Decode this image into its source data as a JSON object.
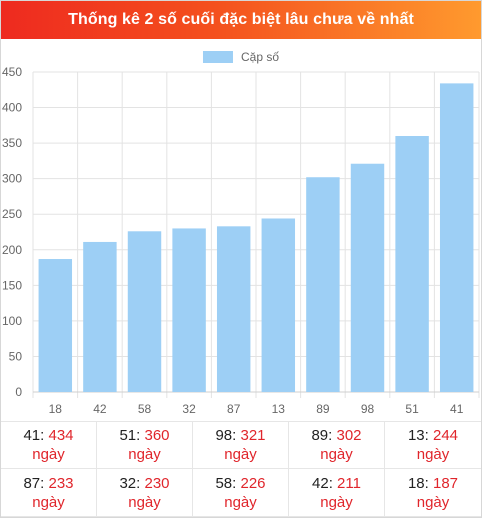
{
  "header": {
    "title": "Thống kê 2 số cuối đặc biệt lâu chưa về nhất"
  },
  "chart_data": {
    "type": "bar",
    "title": "",
    "xlabel": "",
    "ylabel": "",
    "legend": {
      "label": "Cặp số",
      "position": "top",
      "color": "#9dcff5"
    },
    "categories": [
      "18",
      "42",
      "58",
      "32",
      "87",
      "13",
      "89",
      "98",
      "51",
      "41"
    ],
    "series": [
      {
        "name": "Cặp số",
        "values": [
          187,
          211,
          226,
          230,
          233,
          244,
          302,
          321,
          360,
          434
        ]
      }
    ],
    "ylim": [
      0,
      450
    ],
    "yticks": [
      0,
      50,
      100,
      150,
      200,
      250,
      300,
      350,
      400,
      450
    ],
    "grid": true,
    "bar_color": "#9dcff5"
  },
  "stats": {
    "unit": "ngày",
    "items": [
      {
        "num": "41",
        "days": "434"
      },
      {
        "num": "51",
        "days": "360"
      },
      {
        "num": "98",
        "days": "321"
      },
      {
        "num": "89",
        "days": "302"
      },
      {
        "num": "13",
        "days": "244"
      },
      {
        "num": "87",
        "days": "233"
      },
      {
        "num": "32",
        "days": "230"
      },
      {
        "num": "58",
        "days": "226"
      },
      {
        "num": "42",
        "days": "211"
      },
      {
        "num": "18",
        "days": "187"
      }
    ]
  }
}
